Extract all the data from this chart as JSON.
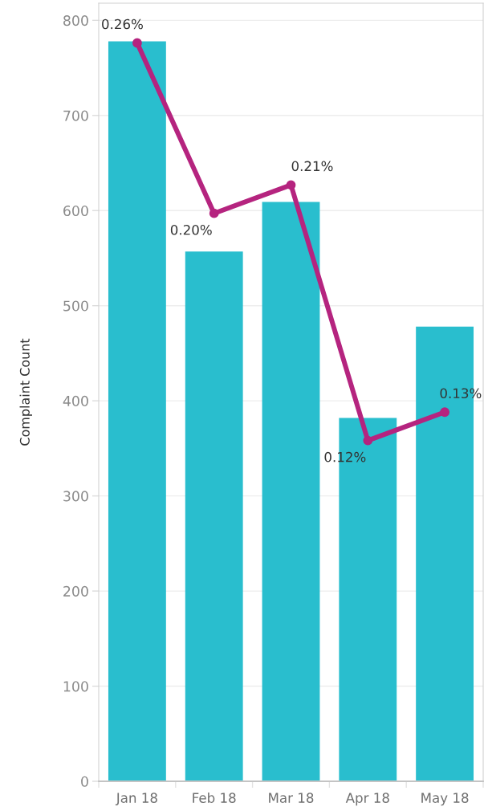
{
  "chart_data": {
    "type": "bar",
    "ylabel": "Complaint Count",
    "categories": [
      "Jan 18",
      "Feb 18",
      "Mar 18",
      "Apr 18",
      "May 18"
    ],
    "series": [
      {
        "color": "#29bece",
        "values": [
          778,
          557,
          609,
          382,
          478
        ]
      },
      {
        "type": "line",
        "axis": "y2",
        "color": "#b5247f",
        "values": [
          0.26,
          0.2,
          0.21,
          0.12,
          0.13
        ],
        "value_labels": [
          "0.26%",
          "0.20%",
          "0.21%",
          "0.12%",
          "0.13%"
        ]
      }
    ],
    "ylim": [
      0,
      818
    ],
    "yticks": [
      0,
      100,
      200,
      300,
      400,
      500,
      600,
      700,
      800
    ],
    "y2lim": [
      0,
      0.274
    ],
    "grid": "y",
    "marker": "circle",
    "line_style": "solid"
  }
}
